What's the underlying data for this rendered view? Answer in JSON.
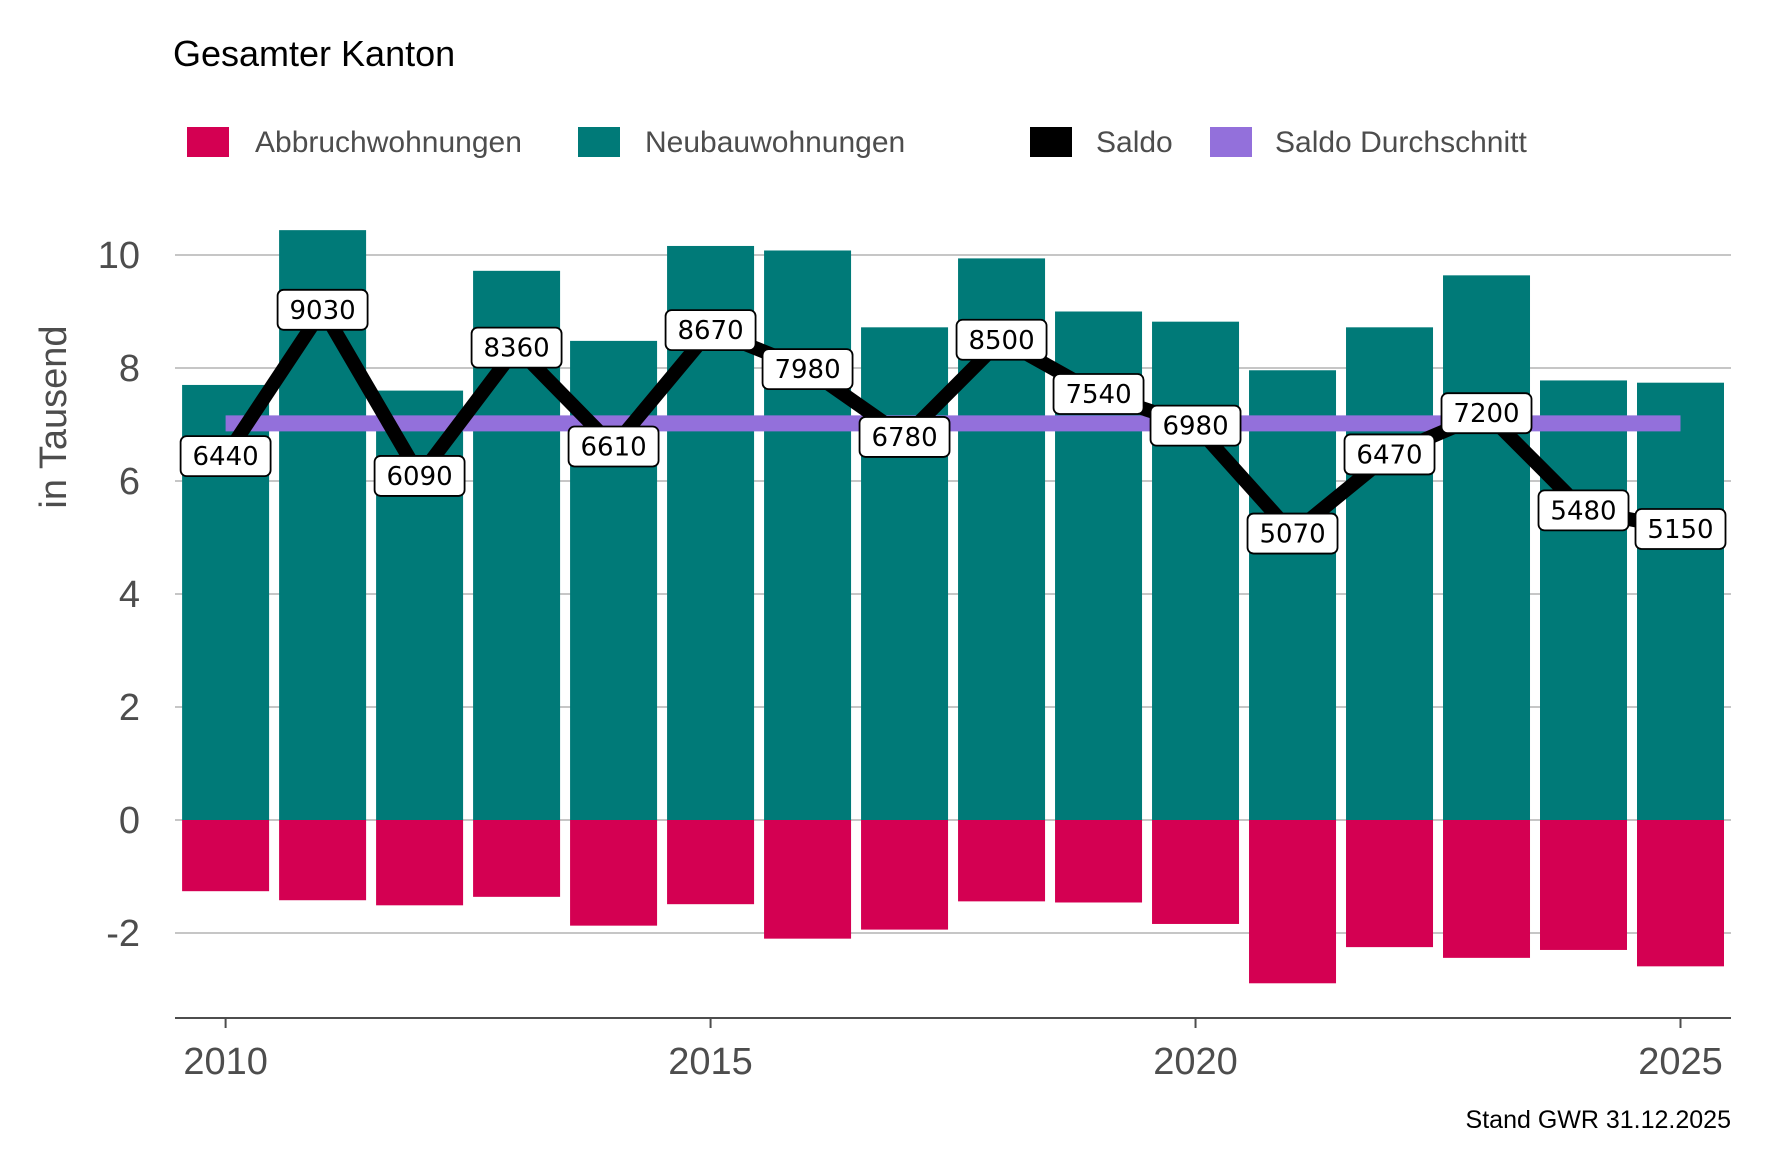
{
  "chart_data": {
    "type": "bar",
    "title": "Gesamter Kanton",
    "xlabel": "",
    "ylabel": "in Tausend",
    "caption": "Stand GWR 31.12.2025",
    "x": [
      2010,
      2011,
      2012,
      2013,
      2014,
      2015,
      2016,
      2017,
      2018,
      2019,
      2020,
      2021,
      2022,
      2023,
      2024,
      2025
    ],
    "x_ticks": [
      "2010",
      "2015",
      "2020",
      "2025"
    ],
    "y_ticks": [
      "-2",
      "0",
      "2",
      "4",
      "6",
      "8",
      "10"
    ],
    "ylim": [
      -3.5,
      11
    ],
    "grid": "horizontal",
    "legend_position": "top",
    "series": [
      {
        "name": "Abbruchwohnungen",
        "type": "bar",
        "color": "#d40052",
        "values": [
          -1.26,
          -1.42,
          -1.51,
          -1.36,
          -1.87,
          -1.49,
          -2.1,
          -1.94,
          -1.44,
          -1.46,
          -1.84,
          -2.89,
          -2.25,
          -2.44,
          -2.3,
          -2.59
        ]
      },
      {
        "name": "Neubauwohnungen",
        "type": "bar",
        "color": "#007a78",
        "values": [
          7.7,
          10.44,
          7.6,
          9.72,
          8.48,
          10.16,
          10.08,
          8.72,
          9.94,
          9.0,
          8.82,
          7.96,
          8.72,
          9.64,
          7.78,
          7.74
        ]
      },
      {
        "name": "Saldo",
        "type": "line",
        "color": "#000000",
        "values": [
          6.44,
          9.03,
          6.09,
          8.36,
          6.61,
          8.67,
          7.98,
          6.78,
          8.5,
          7.54,
          6.98,
          5.07,
          6.47,
          7.2,
          5.48,
          5.15
        ],
        "labels": [
          "6440",
          "9030",
          "6090",
          "8360",
          "6610",
          "8670",
          "7980",
          "6780",
          "8500",
          "7540",
          "6980",
          "5070",
          "6470",
          "7200",
          "5480",
          "5150"
        ]
      },
      {
        "name": "Saldo Durchschnitt",
        "type": "line",
        "color": "#9370db",
        "value": 7.02
      }
    ]
  }
}
